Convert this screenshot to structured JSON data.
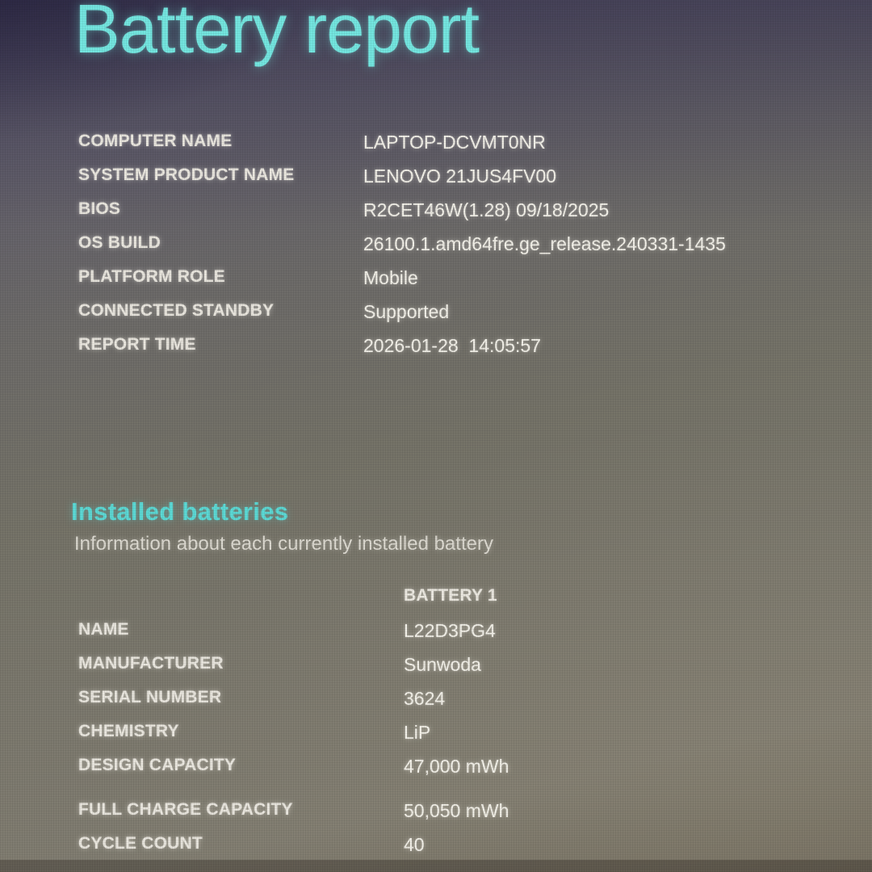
{
  "page": {
    "title": "Battery report"
  },
  "colors": {
    "title_cyan": "#74e6e0",
    "heading_cyan": "#5cd9d5",
    "label_text": "#eae7df",
    "value_text": "#f3f1e9",
    "background_mid": "#757368"
  },
  "system_info": {
    "rows": [
      {
        "label": "COMPUTER NAME",
        "value": "LAPTOP-DCVMT0NR"
      },
      {
        "label": "SYSTEM PRODUCT NAME",
        "value": "LENOVO 21JUS4FV00"
      },
      {
        "label": "BIOS",
        "value": "R2CET46W(1.28) 09/18/2025"
      },
      {
        "label": "OS BUILD",
        "value": "26100.1.amd64fre.ge_release.240331-1435"
      },
      {
        "label": "PLATFORM ROLE",
        "value": "Mobile"
      },
      {
        "label": "CONNECTED STANDBY",
        "value": "Supported"
      },
      {
        "label": "REPORT TIME",
        "value": "2026-01-28  14:05:57"
      }
    ]
  },
  "installed_batteries": {
    "heading": "Installed batteries",
    "subtitle": "Information about each currently installed battery",
    "column_header": "BATTERY 1",
    "rows": [
      {
        "label": "NAME",
        "value": "L22D3PG4"
      },
      {
        "label": "MANUFACTURER",
        "value": "Sunwoda"
      },
      {
        "label": "SERIAL NUMBER",
        "value": "3624"
      },
      {
        "label": "CHEMISTRY",
        "value": "LiP"
      },
      {
        "label": "DESIGN CAPACITY",
        "value": "47,000 mWh"
      },
      {
        "label": "FULL CHARGE CAPACITY",
        "value": "50,050 mWh"
      },
      {
        "label": "CYCLE COUNT",
        "value": "40"
      }
    ]
  }
}
